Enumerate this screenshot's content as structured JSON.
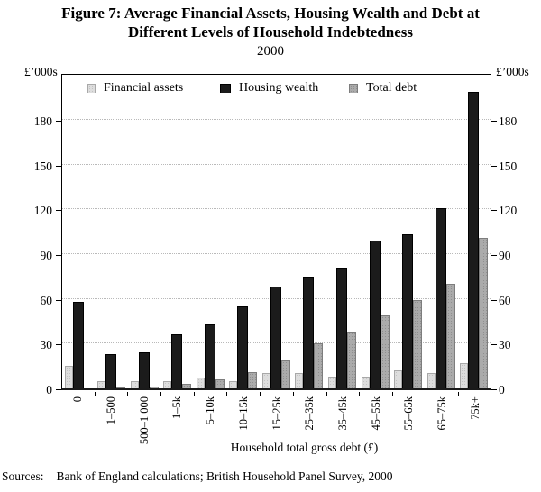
{
  "title": {
    "line1": "Figure 7: Average Financial Assets, Housing Wealth and Debt at",
    "line2": "Different Levels of Household Indebtedness",
    "subtitle": "2000"
  },
  "y_axis_unit": "£’000s",
  "sources": {
    "label": "Sources:",
    "text": "Bank of England calculations; British Household Panel Survey, 2000"
  },
  "chart_data": {
    "type": "bar",
    "title": "Figure 7: Average Financial Assets, Housing Wealth and Debt at Different Levels of Household Indebtedness",
    "subtitle": "2000",
    "xlabel": "Household total gross debt (£)",
    "ylabel_left": "£’000s",
    "ylabel_right": "£’000s",
    "categories": [
      "0",
      "1–500",
      "500–1 000",
      "1–5k",
      "5–10k",
      "10–15k",
      "15–25k",
      "25–35k",
      "35–45k",
      "45–55k",
      "55–65k",
      "65–75k",
      "75k+"
    ],
    "series": [
      {
        "name": "Financial assets",
        "color": "#dddddd",
        "values": [
          15,
          5,
          5,
          5,
          7,
          5,
          10,
          10,
          8,
          8,
          12,
          10,
          17
        ]
      },
      {
        "name": "Housing wealth",
        "color": "#1b1b1b",
        "values": [
          58,
          23,
          24,
          36,
          43,
          55,
          68,
          75,
          81,
          99,
          103,
          121,
          199
        ]
      },
      {
        "name": "Total debt",
        "color": "#ababab",
        "values": [
          0,
          0.5,
          1,
          3,
          6,
          11,
          19,
          30,
          38,
          49,
          59,
          70,
          101
        ]
      }
    ],
    "yticks": [
      0,
      30,
      60,
      90,
      120,
      150,
      180
    ],
    "ylim": [
      0,
      212
    ],
    "grid": true,
    "legend_position": "top-inside",
    "units": "£ thousands"
  }
}
